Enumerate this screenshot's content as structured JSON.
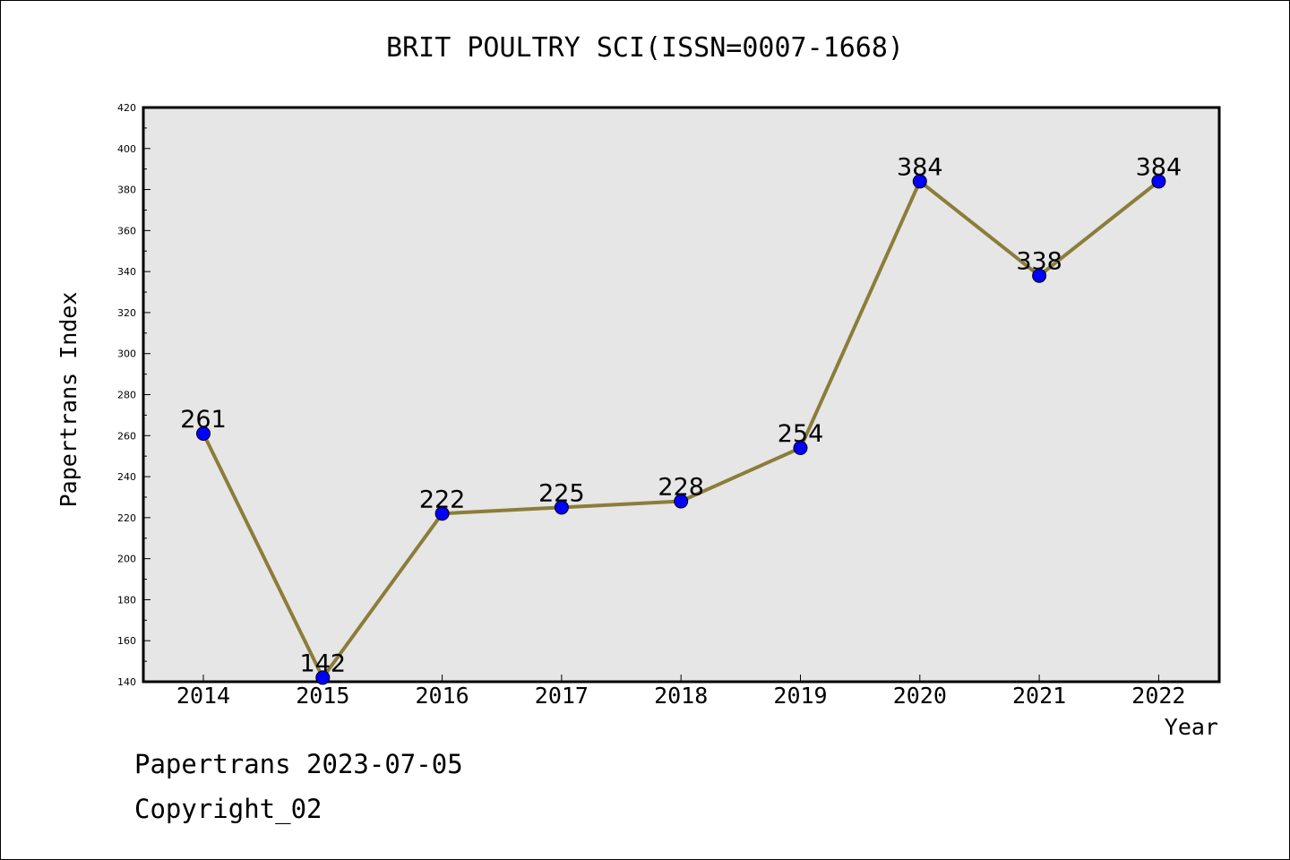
{
  "footer": {
    "line1": "Papertrans 2023-07-05",
    "line2": "Copyright_02"
  },
  "chart_data": {
    "type": "line",
    "title": "BRIT POULTRY SCI(ISSN=0007-1668)",
    "xlabel": "Year",
    "ylabel": "Papertrans Index",
    "categories": [
      "2014",
      "2015",
      "2016",
      "2017",
      "2018",
      "2019",
      "2020",
      "2021",
      "2022"
    ],
    "values": [
      261,
      142,
      222,
      225,
      228,
      254,
      384,
      338,
      384
    ],
    "data_labels": [
      "261",
      "142",
      "222",
      "225",
      "228",
      "254",
      "384",
      "338",
      "384"
    ],
    "ylim": [
      140,
      420
    ],
    "yticks": [
      140,
      160,
      180,
      200,
      220,
      240,
      260,
      280,
      300,
      320,
      340,
      360,
      380,
      400,
      420
    ],
    "ytick_labels": [
      "140",
      "160",
      "180",
      "200",
      "220",
      "240",
      "260",
      "280",
      "300",
      "320",
      "340",
      "360",
      "380",
      "400",
      "420"
    ],
    "grid": false,
    "legend": "none",
    "colors": {
      "line": "#8B7D3A",
      "marker": "#0000FF",
      "plot_background": "#E6E6E6"
    }
  }
}
